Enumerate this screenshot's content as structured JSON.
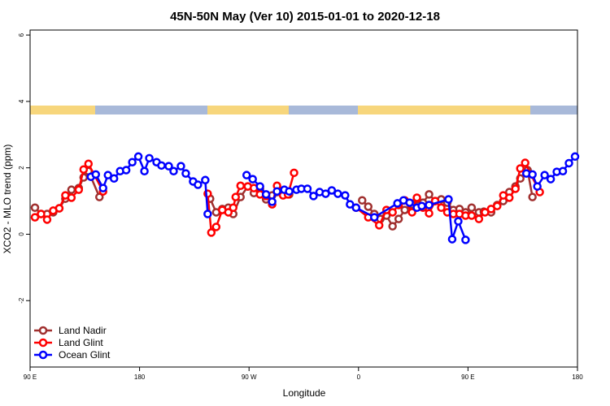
{
  "chart_data": {
    "type": "line",
    "title": "45N-50N May (Ver 10)   2015-01-01 to 2020-12-18",
    "x_label": "Longitude",
    "y_label": "XCO2 - MLO trend (ppm)",
    "xlim": [
      90,
      540
    ],
    "ylim": [
      -4,
      6.15
    ],
    "xticks": [
      {
        "value": 90,
        "label": "90 E"
      },
      180,
      {
        "value": 270,
        "label": "90 W"
      },
      {
        "value": 360,
        "label": "0"
      },
      {
        "value": 450,
        "label": "90 E"
      },
      {
        "value": 540,
        "label": "180"
      }
    ],
    "yticks": [
      -2,
      0,
      2,
      4,
      6
    ],
    "legend": "bottom-left",
    "series": [
      {
        "name": "Land Nadir",
        "color": "#a0302f",
        "x": [
          94,
          99,
          104,
          109,
          114,
          119,
          124,
          130,
          134,
          138,
          147,
          null,
          238,
          243,
          248,
          253,
          257,
          263,
          269,
          274,
          279,
          284,
          289,
          293,
          298,
          303,
          null,
          363,
          368,
          373,
          378,
          383,
          388,
          393,
          398,
          404,
          408,
          413,
          418,
          423,
          428,
          433,
          438,
          443,
          448,
          453,
          459,
          463,
          469,
          474,
          479,
          484,
          489,
          493,
          499,
          503
        ],
        "values": [
          0.8,
          0.61,
          0.61,
          0.66,
          0.78,
          1.07,
          1.34,
          1.39,
          1.71,
          1.9,
          1.12,
          null,
          1.07,
          0.66,
          0.76,
          0.8,
          0.61,
          1.12,
          1.44,
          1.24,
          1.37,
          1.05,
          1.17,
          1.27,
          1.32,
          1.2,
          null,
          1.02,
          0.83,
          0.61,
          0.46,
          0.56,
          0.24,
          0.46,
          0.73,
          0.9,
          1.05,
          0.95,
          1.2,
          1.0,
          1.05,
          0.95,
          0.73,
          0.76,
          0.66,
          0.8,
          0.66,
          0.68,
          0.66,
          0.88,
          1.0,
          1.27,
          1.44,
          1.68,
          1.93,
          1.12
        ]
      },
      {
        "name": "Land Glint",
        "color": "#ff0000",
        "x": [
          94,
          99,
          104,
          109,
          114,
          119,
          124,
          130,
          134,
          138,
          150,
          null,
          236,
          239,
          243,
          248,
          253,
          257,
          259,
          263,
          269,
          274,
          279,
          284,
          289,
          293,
          298,
          302,
          307,
          null,
          358,
          368,
          377,
          383,
          388,
          393,
          398,
          404,
          408,
          413,
          418,
          423,
          428,
          433,
          438,
          443,
          448,
          453,
          459,
          464,
          469,
          474,
          479,
          484,
          489,
          493,
          497,
          509
        ],
        "values": [
          0.51,
          0.61,
          0.44,
          0.71,
          0.78,
          1.17,
          1.1,
          1.34,
          1.95,
          2.12,
          1.29,
          null,
          1.22,
          0.05,
          0.22,
          0.73,
          0.66,
          0.8,
          1.12,
          1.46,
          1.44,
          1.39,
          1.2,
          1.15,
          0.9,
          1.46,
          1.17,
          1.2,
          1.85,
          null,
          0.8,
          0.51,
          0.27,
          0.73,
          0.66,
          0.88,
          1.02,
          0.66,
          1.1,
          0.8,
          0.63,
          1.0,
          0.8,
          0.66,
          0.61,
          0.61,
          0.56,
          0.56,
          0.46,
          0.66,
          0.76,
          0.85,
          1.17,
          1.1,
          1.37,
          1.98,
          2.15,
          1.27
        ]
      },
      {
        "name": "Ocean Glint",
        "color": "#0000ff",
        "x": [
          140,
          144,
          150,
          154,
          159,
          164,
          169,
          174,
          179,
          184,
          188,
          194,
          198,
          204,
          208,
          214,
          218,
          224,
          228,
          234,
          236,
          null,
          268,
          273,
          279,
          284,
          289,
          293,
          299,
          303,
          309,
          313,
          318,
          323,
          328,
          333,
          338,
          343,
          349,
          353,
          358,
          373,
          392,
          397,
          402,
          408,
          412,
          418,
          434,
          437,
          442,
          448,
          null,
          498,
          503,
          507,
          513,
          518,
          523,
          528,
          533,
          538
        ],
        "values": [
          1.73,
          1.8,
          1.39,
          1.78,
          1.68,
          1.9,
          1.93,
          2.17,
          2.34,
          1.9,
          2.29,
          2.17,
          2.07,
          2.05,
          1.9,
          2.05,
          1.83,
          1.59,
          1.49,
          1.63,
          0.61,
          null,
          1.78,
          1.66,
          1.44,
          1.2,
          0.98,
          1.29,
          1.34,
          1.29,
          1.34,
          1.37,
          1.37,
          1.15,
          1.27,
          1.22,
          1.32,
          1.22,
          1.17,
          0.9,
          0.8,
          0.51,
          0.93,
          1.02,
          0.95,
          0.8,
          0.85,
          0.88,
          1.05,
          -0.15,
          0.39,
          -0.17,
          null,
          1.83,
          1.8,
          1.44,
          1.78,
          1.66,
          1.88,
          1.9,
          2.14,
          2.34
        ]
      }
    ]
  }
}
